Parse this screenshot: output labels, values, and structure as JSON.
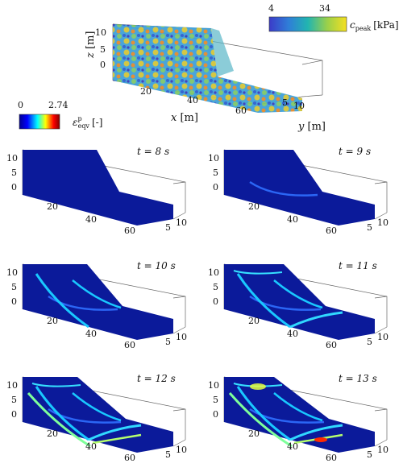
{
  "top_plot": {
    "z_label": "z",
    "z_unit": "[m]",
    "x_label": "x",
    "x_unit": "[m]",
    "y_label": "y",
    "y_unit": "[m]",
    "z_ticks": [
      "10",
      "5",
      "0"
    ],
    "x_ticks": [
      "20",
      "40",
      "60"
    ],
    "y_ticks": [
      "5",
      "10"
    ]
  },
  "cbar_cpeak": {
    "min": "4",
    "max": "34",
    "symbol": "c",
    "subscript": "peak",
    "unit": "[kPa]",
    "colors": [
      "#3b3bc8",
      "#2f7ed8",
      "#22b5b0",
      "#6bc86b",
      "#c9d23a",
      "#f5e020"
    ]
  },
  "cbar_eqv": {
    "min": "0",
    "max": "2.74",
    "symbol": "ε",
    "superscript": "p",
    "subscript": "eqv",
    "unit": "[-]",
    "colors": [
      "#00008f",
      "#0000ff",
      "#00ffff",
      "#ffff00",
      "#ff0000",
      "#800000"
    ]
  },
  "panels": [
    {
      "time": "t = 8 s",
      "z_ticks": [
        "10",
        "5",
        "0"
      ],
      "x_ticks": [
        "20",
        "40",
        "60"
      ],
      "y_ticks": [
        "5",
        "10"
      ]
    },
    {
      "time": "t = 9 s",
      "z_ticks": [
        "10",
        "5",
        "0"
      ],
      "x_ticks": [
        "20",
        "40",
        "60"
      ],
      "y_ticks": [
        "5",
        "10"
      ]
    },
    {
      "time": "t = 10 s",
      "z_ticks": [
        "10",
        "5",
        "0"
      ],
      "x_ticks": [
        "20",
        "40",
        "60"
      ],
      "y_ticks": [
        "5",
        "10"
      ]
    },
    {
      "time": "t = 11 s",
      "z_ticks": [
        "10",
        "5",
        "0"
      ],
      "x_ticks": [
        "20",
        "40",
        "60"
      ],
      "y_ticks": [
        "5",
        "10"
      ]
    },
    {
      "time": "t = 12 s",
      "z_ticks": [
        "10",
        "5",
        "0"
      ],
      "x_ticks": [
        "20",
        "40",
        "60"
      ],
      "y_ticks": [
        "5",
        "10"
      ]
    },
    {
      "time": "t = 13 s",
      "z_ticks": [
        "10",
        "5",
        "0"
      ],
      "x_ticks": [
        "20",
        "40",
        "60"
      ],
      "y_ticks": [
        "5",
        "10"
      ]
    }
  ]
}
